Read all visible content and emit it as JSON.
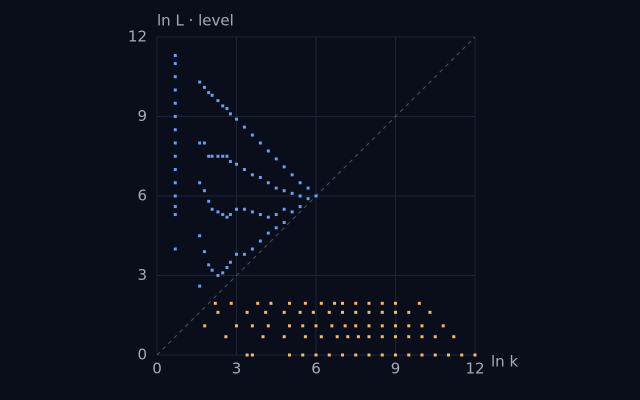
{
  "chart_data": {
    "type": "scatter",
    "xlabel": "ln k",
    "ylabel": "ln L · level",
    "xlim": [
      0,
      12
    ],
    "ylim": [
      0,
      12
    ],
    "xticks": [
      0,
      3,
      6,
      9,
      12
    ],
    "yticks": [
      0,
      3,
      6,
      9,
      12
    ],
    "grid": true,
    "diagonal": true,
    "series": [
      {
        "color": "#6b9bf2",
        "x": [
          0.69,
          0.69,
          0.69,
          0.69,
          0.69,
          0.69,
          0.69,
          0.69,
          0.69,
          0.69,
          0.69,
          0.69,
          0.69,
          0.69,
          0.69,
          1.61,
          1.61,
          1.61,
          1.61,
          1.61,
          1.79,
          1.79,
          1.79,
          1.79,
          1.95,
          1.95,
          1.95,
          1.95,
          2.08,
          2.08,
          2.08,
          2.08,
          2.3,
          2.3,
          2.3,
          2.3,
          2.48,
          2.48,
          2.48,
          2.48,
          2.64,
          2.64,
          2.64,
          2.64,
          2.77,
          2.77,
          2.77,
          2.77,
          3.0,
          3.0,
          3.0,
          3.0,
          3.3,
          3.3,
          3.3,
          3.3,
          3.6,
          3.6,
          3.6,
          3.6,
          3.9,
          3.9,
          3.9,
          3.9,
          4.2,
          4.2,
          4.2,
          4.2,
          4.5,
          4.5,
          4.5,
          4.5,
          4.8,
          4.8,
          4.8,
          4.8,
          5.1,
          5.1,
          5.1,
          5.4,
          5.4,
          5.4,
          5.7,
          5.7,
          6.0
        ],
        "y": [
          4.0,
          5.3,
          5.6,
          6.0,
          6.5,
          7.0,
          7.5,
          8.0,
          8.5,
          9.0,
          9.5,
          10.0,
          10.5,
          11.0,
          11.3,
          10.3,
          8.0,
          6.5,
          4.5,
          2.6,
          10.1,
          8.0,
          6.2,
          3.9,
          9.9,
          7.5,
          5.8,
          3.4,
          9.8,
          7.5,
          5.5,
          3.2,
          9.6,
          7.5,
          5.4,
          3.0,
          9.4,
          7.5,
          5.3,
          3.1,
          9.3,
          7.5,
          5.2,
          3.3,
          9.1,
          7.3,
          5.3,
          3.5,
          8.9,
          7.2,
          5.5,
          3.8,
          8.6,
          7.0,
          5.5,
          3.8,
          8.3,
          6.8,
          5.4,
          4.0,
          8.0,
          6.7,
          5.3,
          4.3,
          7.7,
          6.5,
          5.2,
          4.6,
          7.4,
          6.3,
          5.3,
          4.8,
          7.1,
          6.2,
          5.5,
          5.0,
          6.8,
          6.1,
          5.4,
          6.5,
          6.0,
          5.6,
          6.3,
          5.9,
          6.0
        ]
      },
      {
        "color": "#f2b96b",
        "x": [
          3.4,
          3.6,
          5.0,
          5.5,
          6.0,
          6.5,
          7.0,
          7.5,
          8.0,
          8.5,
          9.0,
          9.5,
          10.0,
          10.5,
          11.0,
          11.5,
          12.0,
          2.6,
          4.0,
          4.8,
          5.6,
          6.2,
          6.8,
          7.2,
          7.6,
          8.0,
          8.5,
          9.0,
          9.5,
          10.0,
          10.5,
          11.2,
          1.8,
          3.0,
          3.6,
          4.2,
          5.0,
          5.5,
          6.0,
          6.6,
          7.1,
          7.5,
          8.0,
          8.5,
          9.0,
          9.5,
          10.0,
          10.8,
          2.3,
          3.4,
          4.1,
          4.8,
          5.4,
          5.9,
          6.5,
          7.0,
          7.5,
          8.0,
          8.5,
          9.0,
          9.5,
          10.3,
          2.2,
          2.8,
          3.8,
          4.3,
          5.0,
          5.6,
          6.2,
          6.7,
          7.0,
          7.5,
          8.0,
          8.5,
          9.0,
          9.9
        ],
        "y": [
          0,
          0,
          0,
          0,
          0,
          0,
          0,
          0,
          0,
          0,
          0,
          0,
          0,
          0,
          0,
          0,
          0,
          0.69,
          0.69,
          0.69,
          0.69,
          0.69,
          0.69,
          0.69,
          0.69,
          0.69,
          0.69,
          0.69,
          0.69,
          0.69,
          0.69,
          0.69,
          1.1,
          1.1,
          1.1,
          1.1,
          1.1,
          1.1,
          1.1,
          1.1,
          1.1,
          1.1,
          1.1,
          1.1,
          1.1,
          1.1,
          1.1,
          1.1,
          1.61,
          1.61,
          1.61,
          1.61,
          1.61,
          1.61,
          1.61,
          1.61,
          1.61,
          1.61,
          1.61,
          1.61,
          1.61,
          1.61,
          1.95,
          1.95,
          1.95,
          1.95,
          1.95,
          1.95,
          1.95,
          1.95,
          1.95,
          1.95,
          1.95,
          1.95,
          1.95,
          1.95
        ]
      }
    ]
  }
}
